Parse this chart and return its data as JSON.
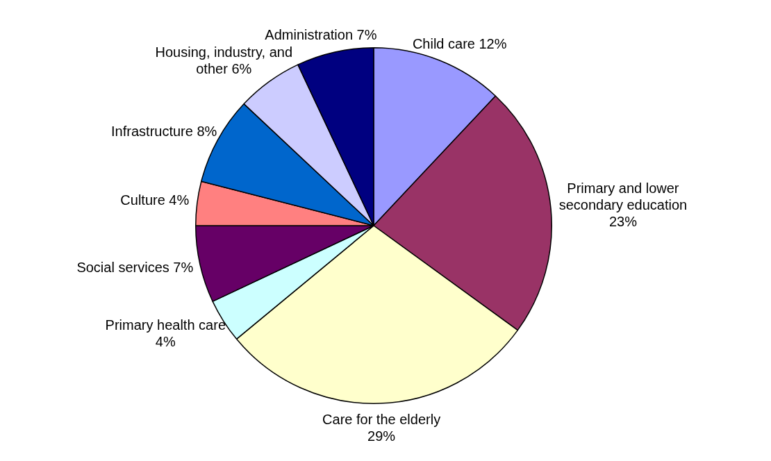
{
  "chart_data": {
    "type": "pie",
    "categories": [
      "Child care",
      "Primary and lower secondary education",
      "Care for the elderly",
      "Primary health care",
      "Social services",
      "Culture",
      "Infrastructure",
      "Housing, industry, and other",
      "Administration"
    ],
    "values": [
      12,
      23,
      29,
      4,
      7,
      4,
      8,
      6,
      7
    ],
    "value_labels": [
      "12%",
      "23%",
      "29%",
      "4%",
      "7%",
      "4%",
      "8%",
      "6%",
      "7%"
    ],
    "colors": [
      "#9999ff",
      "#993366",
      "#ffffcc",
      "#ccffff",
      "#660066",
      "#ff8080",
      "#0066cc",
      "#ccccff",
      "#000080"
    ],
    "legend": false
  }
}
